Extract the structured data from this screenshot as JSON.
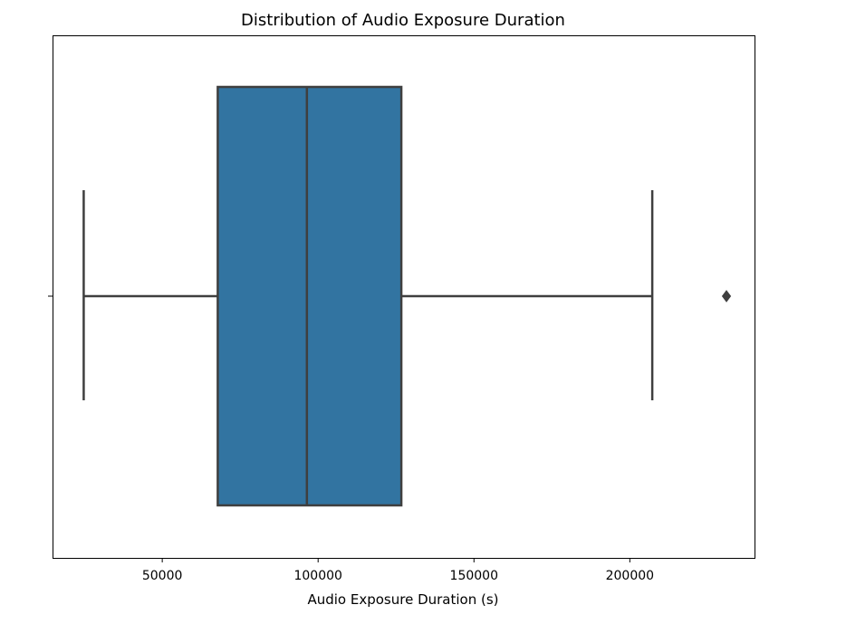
{
  "chart_data": {
    "type": "box",
    "title": "Distribution of Audio Exposure Duration",
    "xlabel": "Audio Exposure Duration (s)",
    "ylabel": "",
    "orientation": "horizontal",
    "xlim": [
      14800,
      240000
    ],
    "x_ticks": [
      50000,
      100000,
      150000,
      200000
    ],
    "x_tick_labels": [
      "50000",
      "100000",
      "150000",
      "200000"
    ],
    "grid": false,
    "legend": "none",
    "box": {
      "whisker_low": 24800,
      "q1": 67800,
      "median": 96400,
      "q3": 126700,
      "whisker_high": 207200,
      "outliers": [
        231000
      ]
    },
    "colors": {
      "box_fill": "#3274a1",
      "lines": "#3f3f3f",
      "axes": "#000000"
    }
  }
}
